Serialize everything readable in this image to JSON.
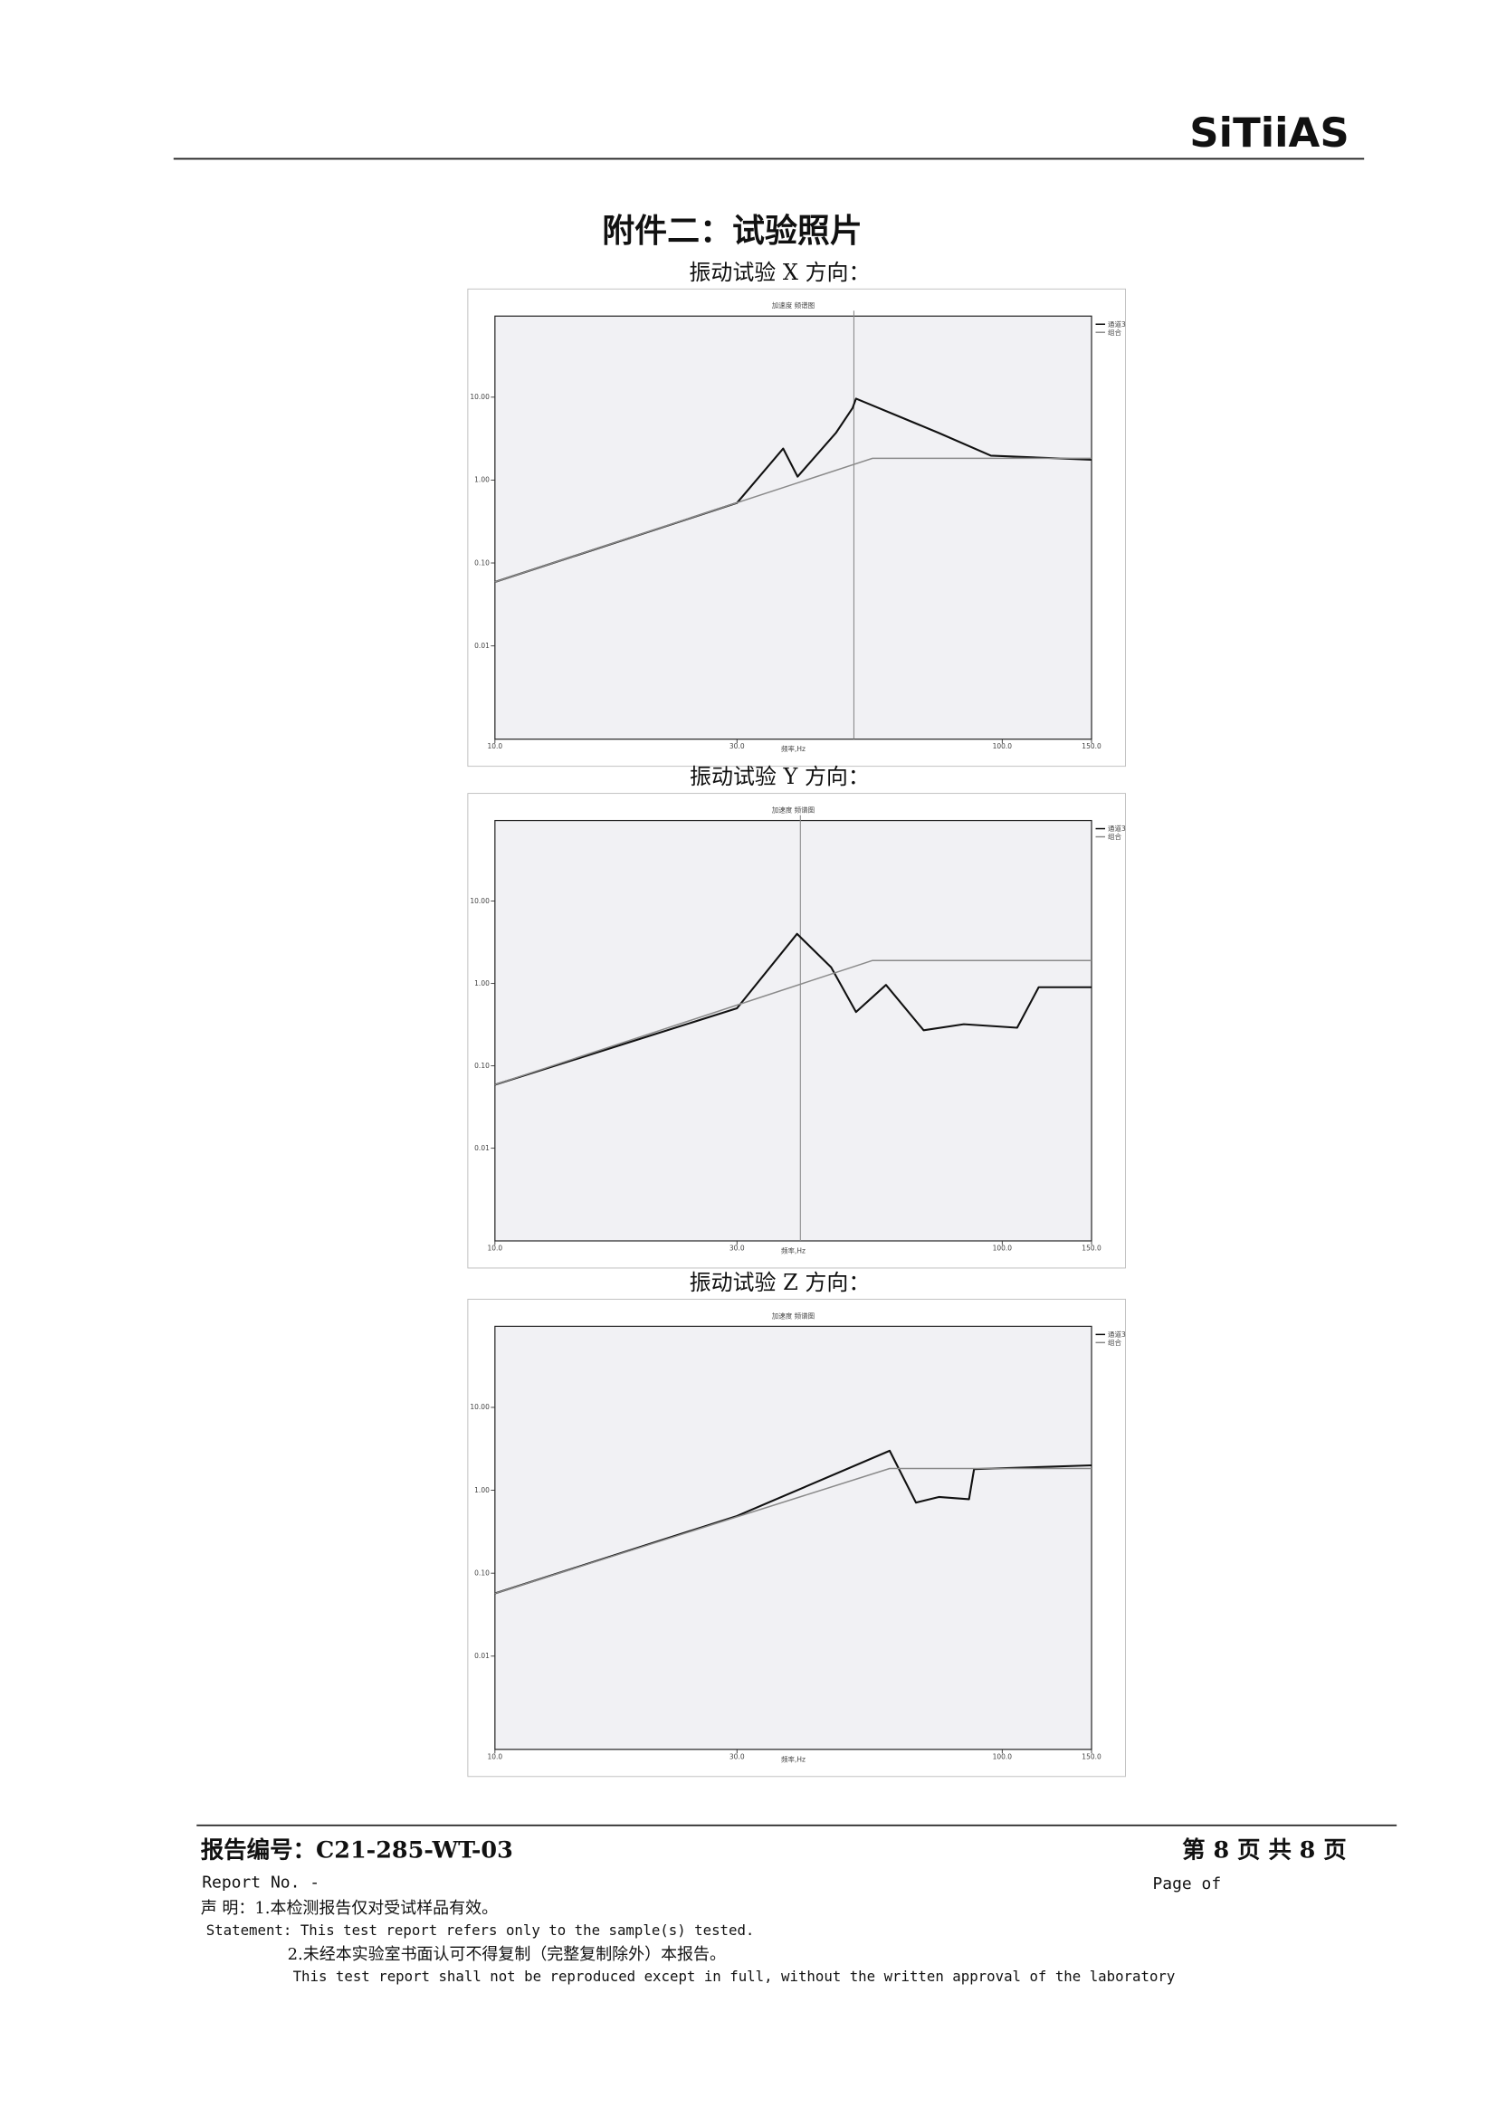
{
  "header": {
    "logo": "SiTiiAS"
  },
  "title": "附件二：试验照片",
  "charts": [
    {
      "caption": "振动试验 X 方向：",
      "chart_data": {
        "type": "line",
        "title": "加速度 频谱图",
        "xlabel": "频率,Hz",
        "log_x": true,
        "log_y": true,
        "xlim": [
          10,
          150
        ],
        "ylim": [
          0.00075,
          95
        ],
        "xticks": [
          {
            "value": 10,
            "label": "10.0"
          },
          {
            "value": 30,
            "label": "30.0"
          },
          {
            "value": 100,
            "label": "100.0"
          },
          {
            "value": 150,
            "label": "150.0"
          }
        ],
        "yticks": [
          {
            "value": 10,
            "label": "10.00"
          },
          {
            "value": 1,
            "label": "1.00"
          },
          {
            "value": 0.1,
            "label": "0.10"
          },
          {
            "value": 0.01,
            "label": "0.01"
          }
        ],
        "cursor": 51,
        "series": [
          {
            "name": "通道3",
            "color": "#111111",
            "x": [
              10,
              30,
              37,
              39.5,
              47,
              50.7,
              51.5,
              75,
              95,
              150
            ],
            "values": [
              0.059,
              0.53,
              2.4,
              1.1,
              3.7,
              7.4,
              9.6,
              3.7,
              1.97,
              1.76
            ]
          },
          {
            "name": "组合",
            "color": "#8a8a8a",
            "x": [
              10,
              55.5,
              150
            ],
            "values": [
              0.059,
              1.83,
              1.83
            ]
          }
        ]
      }
    },
    {
      "caption": "振动试验 Y 方向：",
      "chart_data": {
        "type": "line",
        "title": "加速度 频谱图",
        "xlabel": "频率,Hz",
        "log_x": true,
        "log_y": true,
        "xlim": [
          10,
          150
        ],
        "ylim": [
          0.00075,
          95
        ],
        "xticks": [
          {
            "value": 10,
            "label": "10.0"
          },
          {
            "value": 30,
            "label": "30.0"
          },
          {
            "value": 100,
            "label": "100.0"
          },
          {
            "value": 150,
            "label": "150.0"
          }
        ],
        "yticks": [
          {
            "value": 10,
            "label": "10.00"
          },
          {
            "value": 1,
            "label": "1.00"
          },
          {
            "value": 0.1,
            "label": "0.10"
          },
          {
            "value": 0.01,
            "label": "0.01"
          }
        ],
        "cursor": 40,
        "series": [
          {
            "name": "通道3",
            "color": "#111111",
            "x": [
              10,
              30,
              39.4,
              46,
              51.5,
              59,
              70,
              84,
              107,
              118,
              150
            ],
            "values": [
              0.059,
              0.5,
              4.0,
              1.57,
              0.45,
              0.96,
              0.27,
              0.32,
              0.29,
              0.9,
              0.9
            ]
          },
          {
            "name": "组合",
            "color": "#8a8a8a",
            "x": [
              10,
              55.5,
              150
            ],
            "values": [
              0.059,
              1.9,
              1.9
            ]
          }
        ]
      }
    },
    {
      "caption": "振动试验 Z 方向：",
      "chart_data": {
        "type": "line",
        "title": "加速度 频谱图",
        "xlabel": "频率,Hz",
        "log_x": true,
        "log_y": true,
        "xlim": [
          10,
          150
        ],
        "ylim": [
          0.00075,
          95
        ],
        "xticks": [
          {
            "value": 10,
            "label": "10.0"
          },
          {
            "value": 30,
            "label": "30.0"
          },
          {
            "value": 100,
            "label": "100.0"
          },
          {
            "value": 150,
            "label": "150.0"
          }
        ],
        "yticks": [
          {
            "value": 10,
            "label": "10.00"
          },
          {
            "value": 1,
            "label": "1.00"
          },
          {
            "value": 0.1,
            "label": "0.10"
          },
          {
            "value": 0.01,
            "label": "0.01"
          }
        ],
        "series": [
          {
            "name": "通道3",
            "color": "#111111",
            "x": [
              10,
              30,
              60,
              67.6,
              75,
              86,
              88,
              150
            ],
            "values": [
              0.057,
              0.49,
              3.0,
              0.71,
              0.83,
              0.78,
              1.8,
              2.0
            ]
          },
          {
            "name": "组合",
            "color": "#8a8a8a",
            "x": [
              10,
              60,
              150
            ],
            "values": [
              0.057,
              1.83,
              1.83
            ]
          }
        ]
      }
    }
  ],
  "footer": {
    "report_no": "报告编号：C21-285-WT-03",
    "page": "第 8 页 共 8 页",
    "report_no_en": "Report No.    -",
    "page_en": "Page        of",
    "statement_1": "声    明：1.本检测报告仅对受试样品有效。",
    "statement_1_en": "Statement: This test report refers only to the sample(s) tested.",
    "statement_2": "2.未经本实验室书面认可不得复制（完整复制除外）本报告。",
    "statement_2_en": "This test report shall not be reproduced except in full, without the written approval of the laboratory"
  }
}
